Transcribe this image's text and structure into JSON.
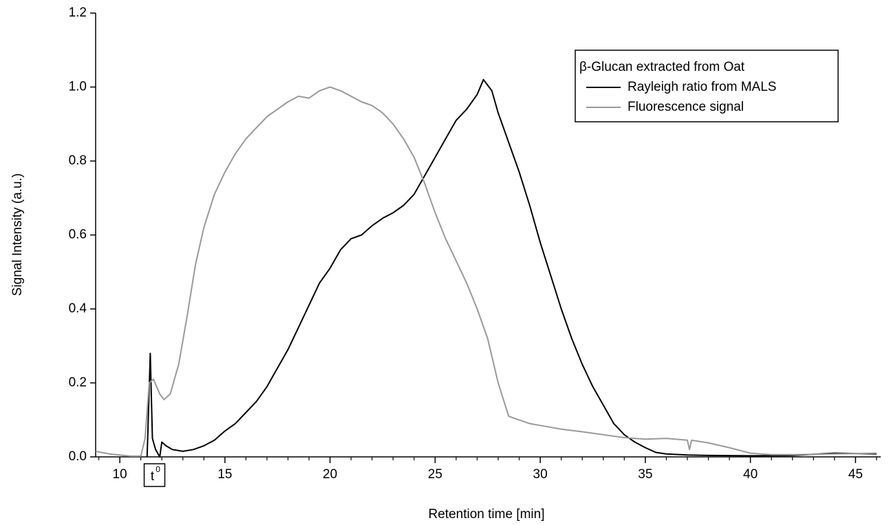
{
  "chart_data": {
    "type": "line",
    "xlabel": "Retention time [min]",
    "ylabel": "Signal Intensity (a.u.)",
    "xlim": [
      8.85,
      46.2
    ],
    "ylim": [
      0,
      1.2
    ],
    "xticks": [
      10,
      15,
      20,
      25,
      30,
      35,
      40,
      45
    ],
    "xminorticks": [
      9,
      11,
      12,
      13,
      14,
      16,
      17,
      18,
      19,
      21,
      22,
      23,
      24,
      26,
      27,
      28,
      29,
      31,
      32,
      33,
      34,
      36,
      37,
      38,
      39,
      41,
      42,
      43,
      44,
      46
    ],
    "yticks": [
      {
        "value": 0,
        "label": "0.0"
      },
      0.2,
      0.4,
      0.6,
      0.8,
      {
        "value": 1,
        "label": "1.0"
      },
      1.2
    ],
    "grid": false,
    "legend": {
      "title": "β-Glucan extracted from Oat",
      "corner": "top-right"
    },
    "annotations": [
      {
        "text": "t",
        "sup": "0",
        "x": 11.65
      }
    ],
    "series": [
      {
        "name": "Rayleigh ratio from MALS",
        "color": "#000000",
        "x": [
          11.3,
          11.45,
          11.55,
          11.7,
          11.9,
          12.0,
          12.2,
          12.5,
          13,
          13.5,
          14,
          14.5,
          15,
          15.5,
          16,
          16.5,
          17,
          17.5,
          18,
          18.5,
          19,
          19.5,
          20,
          20.5,
          21,
          21.5,
          22,
          22.5,
          23,
          23.5,
          24,
          24.5,
          25,
          25.5,
          26,
          26.5,
          27,
          27.3,
          27.7,
          28,
          28.5,
          29,
          29.5,
          30,
          30.5,
          31,
          31.5,
          32,
          32.5,
          33,
          33.5,
          34,
          34.5,
          35,
          35.5,
          36,
          37,
          38,
          40,
          42,
          44,
          46
        ],
        "values": [
          0,
          0.28,
          0.05,
          0.02,
          0.0,
          0.04,
          0.03,
          0.02,
          0.015,
          0.02,
          0.03,
          0.045,
          0.07,
          0.09,
          0.12,
          0.15,
          0.19,
          0.24,
          0.29,
          0.35,
          0.41,
          0.47,
          0.51,
          0.56,
          0.59,
          0.6,
          0.625,
          0.645,
          0.66,
          0.68,
          0.71,
          0.76,
          0.81,
          0.86,
          0.91,
          0.94,
          0.98,
          1.02,
          0.99,
          0.93,
          0.85,
          0.77,
          0.68,
          0.58,
          0.49,
          0.4,
          0.32,
          0.25,
          0.19,
          0.14,
          0.09,
          0.06,
          0.04,
          0.025,
          0.012,
          0.008,
          0.005,
          0.004,
          0.003,
          0.004,
          0.01,
          0.008
        ]
      },
      {
        "name": "Fluorescence signal",
        "color": "#999999",
        "x": [
          8.85,
          9.5,
          10.5,
          11.0,
          11.2,
          11.4,
          11.6,
          11.9,
          12.1,
          12.4,
          12.8,
          13.2,
          13.6,
          14.0,
          14.5,
          15,
          15.5,
          16,
          16.5,
          17,
          17.5,
          18,
          18.5,
          19,
          19.5,
          20,
          20.5,
          21,
          21.5,
          22,
          22.5,
          23,
          23.5,
          24,
          24.5,
          25,
          25.5,
          26,
          26.5,
          27,
          27.5,
          28,
          28.5,
          29,
          29.5,
          30,
          31,
          32,
          33,
          34,
          35,
          36,
          37,
          37.1,
          37.2,
          38,
          39,
          40,
          41,
          42,
          44,
          46
        ],
        "values": [
          0.015,
          0.008,
          0.002,
          0.002,
          0.05,
          0.2,
          0.21,
          0.17,
          0.155,
          0.17,
          0.25,
          0.38,
          0.52,
          0.62,
          0.71,
          0.77,
          0.82,
          0.86,
          0.89,
          0.92,
          0.94,
          0.96,
          0.975,
          0.97,
          0.99,
          1.0,
          0.99,
          0.975,
          0.96,
          0.95,
          0.93,
          0.9,
          0.86,
          0.81,
          0.74,
          0.66,
          0.59,
          0.53,
          0.47,
          0.4,
          0.32,
          0.2,
          0.11,
          0.1,
          0.09,
          0.085,
          0.075,
          0.068,
          0.06,
          0.052,
          0.048,
          0.05,
          0.045,
          0.02,
          0.045,
          0.038,
          0.025,
          0.01,
          0.006,
          0.006,
          0.008,
          0.01
        ]
      }
    ]
  }
}
